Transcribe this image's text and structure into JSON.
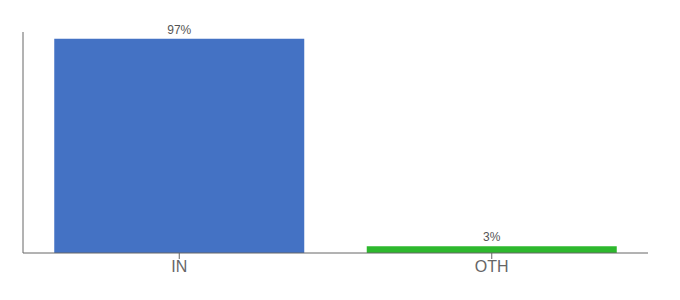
{
  "chart_data": {
    "type": "bar",
    "categories": [
      "IN",
      "OTH"
    ],
    "values": [
      97,
      3
    ],
    "colors": [
      "#4472c4",
      "#2db82d"
    ],
    "value_labels": [
      "97%",
      "3%"
    ],
    "data_labels": true,
    "ylim": [
      0,
      100
    ],
    "tick_labels": "x",
    "grid": false
  }
}
